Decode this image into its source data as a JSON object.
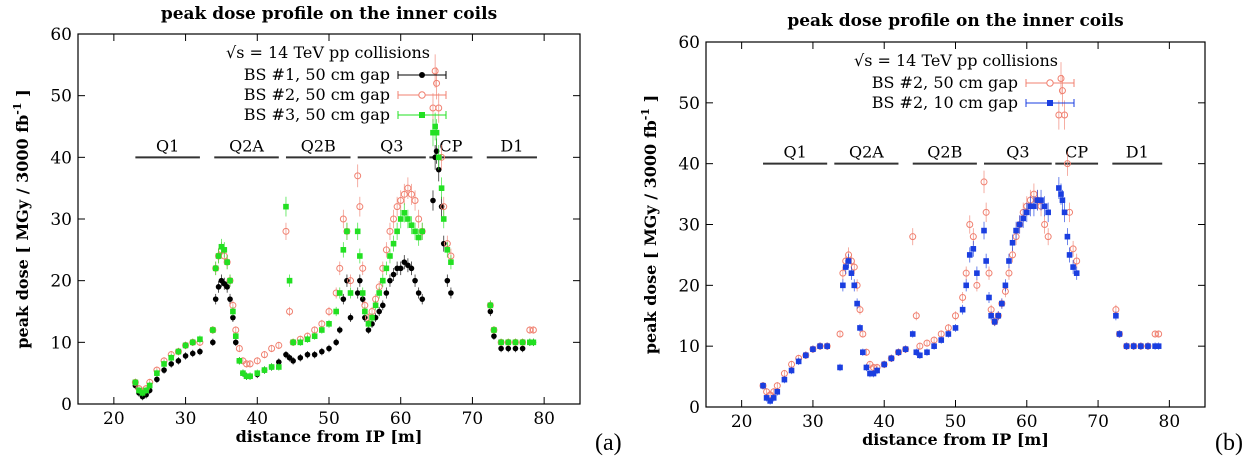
{
  "chart_data": [
    {
      "panel_label": "(a)",
      "type": "scatter",
      "title": "peak dose profile on the inner coils",
      "xlabel": "distance from IP [m]",
      "ylabel": "peak dose [ MGy / 3000 fb",
      "ylabel_sup": "-1",
      "ylabel_end": " ]",
      "xlim": [
        15,
        85
      ],
      "ylim": [
        0,
        60
      ],
      "xticks": [
        "20",
        "30",
        "40",
        "50",
        "60",
        "70",
        "80"
      ],
      "yticks": [
        "0",
        "10",
        "20",
        "30",
        "40",
        "50",
        "60"
      ],
      "legend_title": "√s = 14 TeV pp collisions",
      "legend_position": "top-center",
      "magnets": [
        {
          "name": "Q1",
          "x0": 23,
          "x1": 32,
          "y": 40
        },
        {
          "name": "Q2A",
          "x0": 34,
          "x1": 43,
          "y": 40
        },
        {
          "name": "Q2B",
          "x0": 44,
          "x1": 53,
          "y": 40
        },
        {
          "name": "Q3",
          "x0": 54,
          "x1": 63.5,
          "y": 40
        },
        {
          "name": "CP",
          "x0": 64,
          "x1": 70,
          "y": 40
        },
        {
          "name": "D1",
          "x0": 72,
          "x1": 79,
          "y": 40
        }
      ],
      "series": [
        {
          "name": "BS #1, 50 cm gap",
          "color": "#000000",
          "marker": "filled-circle",
          "x": [
            23,
            23.5,
            24,
            24.5,
            25,
            26,
            27,
            28,
            29,
            30,
            31,
            32,
            33.8,
            34.2,
            34.6,
            35,
            35.4,
            35.8,
            36.2,
            36.6,
            37,
            37.5,
            38,
            38.5,
            39,
            40,
            41,
            42,
            43,
            44,
            44.5,
            45,
            46,
            47,
            48,
            49,
            50,
            51,
            51.5,
            52,
            52.5,
            53,
            54,
            54.3,
            54.7,
            55,
            55.5,
            56,
            56.5,
            57,
            57.5,
            58,
            58.5,
            59,
            59.5,
            60,
            60.5,
            61,
            61.5,
            62,
            62.5,
            63,
            64.5,
            64.8,
            65,
            65.3,
            65.7,
            66,
            66.5,
            67,
            72.5,
            73,
            74,
            75,
            76,
            77,
            78,
            78.5
          ],
          "y": [
            3,
            1.8,
            1.2,
            1.5,
            2.2,
            4,
            5.5,
            6.5,
            7,
            7.8,
            8.2,
            8.5,
            10,
            17,
            19,
            20,
            19.5,
            19,
            17,
            14,
            10,
            7,
            5,
            4.5,
            4.5,
            4.8,
            5.5,
            6,
            6.8,
            8,
            7.5,
            7,
            7.5,
            8,
            8,
            8.5,
            9,
            10,
            12,
            17,
            20,
            14,
            18,
            20,
            17,
            14,
            12,
            13,
            14,
            15,
            16,
            18,
            20,
            21,
            22,
            22,
            23,
            22.5,
            22,
            20,
            18,
            17,
            33,
            40,
            41,
            38,
            32,
            26,
            20,
            18,
            15,
            11,
            9,
            9,
            9,
            9,
            10,
            10
          ]
        },
        {
          "name": "BS #2, 50 cm gap",
          "color": "#f08070",
          "marker": "open-circle",
          "x": [
            23,
            23.5,
            24,
            24.5,
            25,
            26,
            27,
            28,
            29,
            30,
            31,
            32,
            33.8,
            34.2,
            34.6,
            35,
            35.4,
            35.8,
            36.2,
            36.6,
            37,
            37.5,
            38,
            38.5,
            39,
            40,
            41,
            42,
            43,
            44,
            44.5,
            45,
            46,
            47,
            48,
            49,
            50,
            51,
            51.5,
            52,
            52.5,
            53,
            54,
            54.3,
            54.7,
            55,
            55.5,
            56,
            56.5,
            57,
            57.5,
            58,
            58.5,
            59,
            59.5,
            60,
            60.5,
            61,
            61.5,
            62,
            62.5,
            63,
            64.5,
            64.8,
            65,
            65.3,
            65.7,
            66,
            66.5,
            67,
            72.5,
            73,
            74,
            75,
            76,
            77,
            78,
            78.5
          ],
          "y": [
            3.5,
            2.5,
            2,
            2.5,
            3.5,
            5.5,
            7,
            8,
            8.5,
            9.5,
            10,
            10,
            12,
            22,
            24,
            25,
            24,
            23,
            20,
            16,
            12,
            9,
            7,
            6.5,
            6.5,
            7,
            8,
            9,
            9.5,
            28,
            15,
            10,
            10.5,
            11,
            12,
            13,
            15,
            18,
            22,
            30,
            28,
            20,
            37,
            32,
            22,
            16,
            14,
            15,
            17,
            19,
            22,
            25,
            28,
            30,
            32,
            33,
            34,
            35,
            34,
            33,
            30,
            28,
            48,
            54,
            52,
            48,
            40,
            32,
            26,
            24,
            16,
            12,
            10,
            10,
            10,
            10,
            12,
            12
          ]
        },
        {
          "name": "BS #3, 50 cm gap",
          "color": "#22e022",
          "marker": "filled-square",
          "x": [
            23,
            23.5,
            24,
            24.5,
            25,
            26,
            27,
            28,
            29,
            30,
            31,
            32,
            33.8,
            34.2,
            34.6,
            35,
            35.4,
            35.8,
            36.2,
            36.6,
            37,
            37.5,
            38,
            38.5,
            39,
            40,
            41,
            42,
            43,
            44,
            44.5,
            45,
            46,
            47,
            48,
            49,
            50,
            51,
            51.5,
            52,
            52.5,
            53,
            54,
            54.3,
            54.7,
            55,
            55.5,
            56,
            56.5,
            57,
            57.5,
            58,
            58.5,
            59,
            59.5,
            60,
            60.5,
            61,
            61.5,
            62,
            62.5,
            63,
            64.5,
            64.8,
            65,
            65.3,
            65.7,
            66,
            66.5,
            67,
            72.5,
            73,
            74,
            75,
            76,
            77,
            78,
            78.5
          ],
          "y": [
            3.5,
            2.2,
            1.8,
            2.2,
            3,
            5,
            6.5,
            7.5,
            8.5,
            9.5,
            10,
            10.5,
            12,
            22,
            24,
            25.5,
            25,
            23,
            20,
            15,
            11,
            7,
            5,
            4.5,
            4.5,
            5,
            5.5,
            6,
            6,
            32,
            20,
            10,
            10,
            10.5,
            11,
            12,
            13,
            15,
            18,
            25,
            28,
            18,
            28,
            24,
            18,
            15,
            13,
            14,
            16,
            18,
            20,
            22,
            24,
            26,
            28,
            30,
            31,
            30,
            29,
            28,
            27,
            28,
            44,
            45,
            44,
            40,
            35,
            30,
            25,
            23,
            16,
            12,
            10,
            10,
            10,
            10,
            10,
            10
          ]
        }
      ]
    },
    {
      "panel_label": "(b)",
      "type": "scatter",
      "title": "peak dose profile on the inner coils",
      "xlabel": "distance from IP [m]",
      "ylabel": "peak dose [ MGy / 3000 fb",
      "ylabel_sup": "-1",
      "ylabel_end": " ]",
      "xlim": [
        15,
        85
      ],
      "ylim": [
        0,
        60
      ],
      "xticks": [
        "20",
        "30",
        "40",
        "50",
        "60",
        "70",
        "80"
      ],
      "yticks": [
        "0",
        "10",
        "20",
        "30",
        "40",
        "50",
        "60"
      ],
      "legend_title": "√s = 14 TeV pp collisions",
      "legend_position": "top-center",
      "magnets": [
        {
          "name": "Q1",
          "x0": 23,
          "x1": 32,
          "y": 40
        },
        {
          "name": "Q2A",
          "x0": 33,
          "x1": 42,
          "y": 40
        },
        {
          "name": "Q2B",
          "x0": 44,
          "x1": 53,
          "y": 40
        },
        {
          "name": "Q3",
          "x0": 54,
          "x1": 63.5,
          "y": 40
        },
        {
          "name": "CP",
          "x0": 64,
          "x1": 70,
          "y": 40
        },
        {
          "name": "D1",
          "x0": 72,
          "x1": 79,
          "y": 40
        }
      ],
      "series": [
        {
          "name": "BS #2, 50 cm gap",
          "color": "#f08070",
          "marker": "open-circle",
          "x": [
            23,
            23.5,
            24,
            24.5,
            25,
            26,
            27,
            28,
            29,
            30,
            31,
            32,
            33.8,
            34.2,
            34.6,
            35,
            35.4,
            35.8,
            36.2,
            36.6,
            37,
            37.5,
            38,
            38.5,
            39,
            40,
            41,
            42,
            43,
            44,
            44.5,
            45,
            46,
            47,
            48,
            49,
            50,
            51,
            51.5,
            52,
            52.5,
            53,
            54,
            54.3,
            54.7,
            55,
            55.5,
            56,
            56.5,
            57,
            57.5,
            58,
            58.5,
            59,
            59.5,
            60,
            60.5,
            61,
            61.5,
            62,
            62.5,
            63,
            64.5,
            64.8,
            65,
            65.3,
            65.7,
            66,
            66.5,
            67,
            72.5,
            73,
            74,
            75,
            76,
            77,
            78,
            78.5
          ],
          "y": [
            3.5,
            2.5,
            2,
            2.5,
            3.5,
            5.5,
            7,
            8,
            8.5,
            9.5,
            10,
            10,
            12,
            22,
            24,
            25,
            24,
            23,
            20,
            16,
            12,
            9,
            7,
            6.5,
            6.5,
            7,
            8,
            9,
            9.5,
            28,
            15,
            10,
            10.5,
            11,
            12,
            13,
            15,
            18,
            22,
            30,
            28,
            20,
            37,
            32,
            22,
            16,
            14,
            15,
            17,
            19,
            22,
            25,
            28,
            30,
            32,
            33,
            34,
            35,
            34,
            33,
            30,
            28,
            48,
            54,
            52,
            48,
            40,
            32,
            26,
            24,
            16,
            12,
            10,
            10,
            10,
            10,
            12,
            12
          ]
        },
        {
          "name": "BS #2, 10 cm gap",
          "color": "#1a3ee0",
          "marker": "filled-square",
          "x": [
            23,
            23.5,
            24,
            24.5,
            25,
            26,
            27,
            28,
            29,
            30,
            31,
            32,
            33.8,
            34.2,
            34.6,
            35,
            35.4,
            35.8,
            36.2,
            36.6,
            37,
            37.5,
            38,
            38.5,
            39,
            40,
            41,
            42,
            43,
            44,
            44.5,
            45,
            46,
            47,
            48,
            49,
            50,
            51,
            51.5,
            52,
            52.5,
            53,
            54,
            54.3,
            54.7,
            55,
            55.5,
            56,
            56.5,
            57,
            57.5,
            58,
            58.5,
            59,
            59.5,
            60,
            60.5,
            61,
            61.5,
            62,
            62.5,
            63,
            64.5,
            64.8,
            65,
            65.3,
            65.7,
            66,
            66.5,
            67,
            72.5,
            73,
            74,
            75,
            76,
            77,
            78,
            78.5
          ],
          "y": [
            3.5,
            1.5,
            1,
            1.5,
            2.5,
            4.5,
            6,
            7.5,
            8.5,
            9.5,
            10,
            10,
            6.5,
            20,
            23,
            24,
            22,
            20,
            17,
            13,
            9,
            6.5,
            5.5,
            5.5,
            6,
            7,
            8,
            9,
            9.5,
            12,
            9,
            8.5,
            9,
            10,
            11,
            12,
            13,
            16,
            20,
            25,
            26,
            22,
            29,
            24,
            18,
            15,
            14,
            15,
            17,
            20,
            24,
            27,
            29,
            30,
            31,
            32,
            33,
            33,
            34,
            34,
            33,
            32,
            36,
            35,
            34,
            32,
            28,
            25,
            23,
            22,
            15,
            12,
            10,
            10,
            10,
            10,
            10,
            10
          ]
        }
      ]
    }
  ]
}
